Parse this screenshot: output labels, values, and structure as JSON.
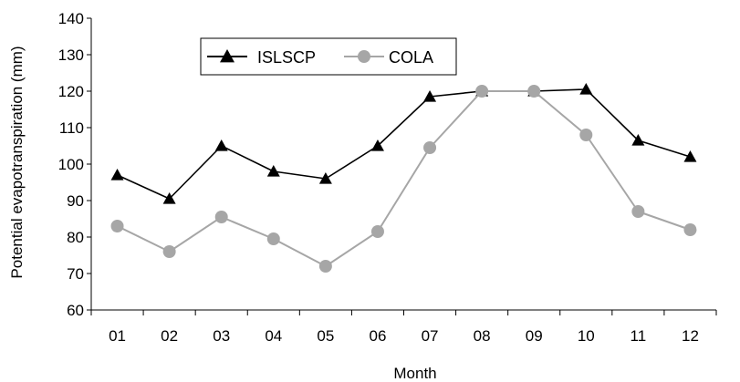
{
  "chart_data": {
    "type": "line",
    "title": "",
    "xlabel": "Month",
    "ylabel": "Potential evapotranspiration (mm)",
    "categories": [
      "01",
      "02",
      "03",
      "04",
      "05",
      "06",
      "07",
      "08",
      "09",
      "10",
      "11",
      "12"
    ],
    "ylim": [
      60,
      140
    ],
    "yticks": [
      60,
      70,
      80,
      90,
      100,
      110,
      120,
      130,
      140
    ],
    "grid": false,
    "legend_position": "top-left",
    "series": [
      {
        "name": "ISLSCP",
        "marker": "triangle",
        "color": "#000000",
        "values": [
          97,
          90.5,
          105,
          98,
          96,
          105,
          118.5,
          120,
          120,
          120.5,
          106.5,
          102
        ]
      },
      {
        "name": "COLA",
        "marker": "circle",
        "color": "#a6a6a6",
        "values": [
          83,
          76,
          85.5,
          79.5,
          72,
          81.5,
          104.5,
          120,
          120,
          108,
          87,
          82
        ]
      }
    ]
  }
}
